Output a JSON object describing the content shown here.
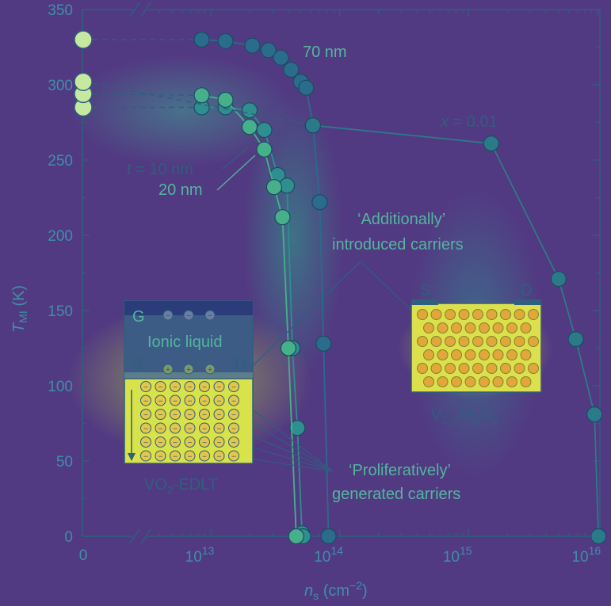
{
  "chart_data": {
    "type": "scatter",
    "xlabel": "n_s (cm^-2)",
    "xlabel_main": "n",
    "xlabel_sub": "s",
    "xlabel_unit": "(cm",
    "xlabel_unit_exp": "−2",
    "xlabel_unit_close": ")",
    "ylabel_main": "T",
    "ylabel_sub": "MI",
    "ylabel_unit": "(K)",
    "xscale": "log",
    "x_break": true,
    "xlim": [
      3000000000000.0,
      1.3e+16
    ],
    "ylim": [
      0,
      350
    ],
    "yticks": [
      0,
      50,
      100,
      150,
      200,
      250,
      300,
      350
    ],
    "xticks_zero": "0",
    "xticks": [
      {
        "value": 10000000000000.0,
        "base": "10",
        "exp": "13"
      },
      {
        "value": 100000000000000.0,
        "base": "10",
        "exp": "14"
      },
      {
        "value": 1000000000000000.0,
        "base": "10",
        "exp": "15"
      },
      {
        "value": 1e+16,
        "base": "10",
        "exp": "16"
      }
    ],
    "series": [
      {
        "name": "70 nm",
        "color": "#2b6b8c",
        "zero_value": 330,
        "x": [
          8500000000000.0,
          13000000000000.0,
          21000000000000.0,
          28000000000000.0,
          35000000000000.0,
          42000000000000.0,
          50000000000000.0,
          55000000000000.0,
          62000000000000.0,
          70000000000000.0,
          75000000000000.0,
          82000000000000.0
        ],
        "y": [
          330,
          329,
          326,
          323,
          318,
          310,
          302,
          298,
          273,
          222,
          128,
          0
        ]
      },
      {
        "name": "t = 10 nm",
        "color": "#2f8e8f",
        "zero_value": 285,
        "x": [
          8500000000000.0,
          13000000000000.0,
          20000000000000.0,
          26000000000000.0,
          33000000000000.0,
          39000000000000.0,
          43000000000000.0,
          47000000000000.0,
          51000000000000.0,
          52000000000000.0
        ],
        "y": [
          285,
          285,
          283,
          270,
          240,
          233,
          125,
          72,
          2,
          0
        ]
      },
      {
        "name": "20 nm",
        "color": "#46b08a",
        "zero_value": 294,
        "x": [
          8500000000000.0,
          13000000000000.0,
          20000000000000.0,
          26000000000000.0,
          31000000000000.0,
          36000000000000.0,
          40000000000000.0,
          46000000000000.0
        ],
        "y": [
          293,
          290,
          272,
          257,
          232,
          212,
          125,
          0
        ]
      },
      {
        "name": "x = 0.01",
        "color": "#2b7a8a",
        "zero_value": 302,
        "x": [
          62000000000000.0,
          1500000000000000.0,
          5000000000000000.0,
          6800000000000000.0,
          9500000000000000.0,
          1.02e+16
        ],
        "y": [
          273,
          261,
          171,
          131,
          81,
          0
        ]
      }
    ],
    "annotations": {
      "seventy": "70 nm",
      "x_label_italic": "x",
      "x_value": " = 0.01",
      "t_italic": "t",
      "t_value": " = 10 nm",
      "twenty": "20 nm",
      "additionally_1": "‘Additionally’",
      "additionally_2": "introduced carriers",
      "prolif_1": "‘Proliferatively’",
      "prolif_2": "generated carriers"
    }
  },
  "inset_edlt": {
    "gate": "G",
    "liquid": "Ionic liquid",
    "source": "S",
    "drain": "D",
    "minus": "−",
    "plus": "+",
    "caption_pre": "VO",
    "caption_sub": "2",
    "caption_post": "-EDLT"
  },
  "inset_vw": {
    "source": "S",
    "drain": "D",
    "caption_v": "V",
    "caption_v_sub": "1−",
    "caption_v_sub_x": "x",
    "caption_w": "W",
    "caption_w_sub": "x",
    "caption_o": "O",
    "caption_o_sub": "2"
  },
  "colors": {
    "axis": "#2f5e7e",
    "marker_fill": "#2d6f8a",
    "marker_stroke": "#1d4a63",
    "open_marker": "#c7e8a0"
  }
}
